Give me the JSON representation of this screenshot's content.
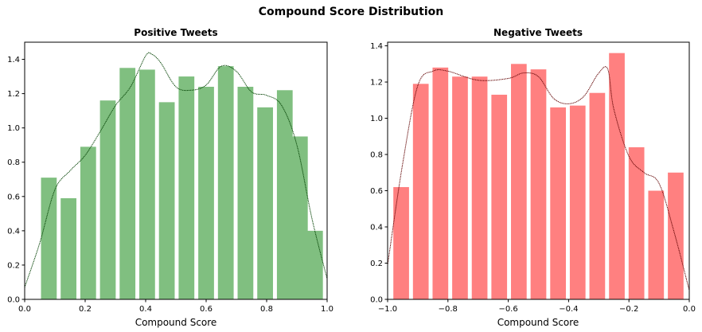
{
  "figure": {
    "suptitle": "Compound Score Distribution"
  },
  "chart_data": [
    {
      "type": "bar",
      "title": "Positive Tweets",
      "xlabel": "Compound Score",
      "ylabel": "",
      "xlim": [
        0.0,
        1.0
      ],
      "ylim": [
        0.0,
        1.5
      ],
      "xticks": [
        0.0,
        0.2,
        0.4,
        0.6,
        0.8,
        1.0
      ],
      "xtick_labels": [
        "0.0",
        "0.2",
        "0.4",
        "0.6",
        "0.8",
        "1.0"
      ],
      "yticks": [
        0.0,
        0.2,
        0.4,
        0.6,
        0.8,
        1.0,
        1.2,
        1.4
      ],
      "ytick_labels": [
        "0.0",
        "0.2",
        "0.4",
        "0.6",
        "0.8",
        "1.0",
        "1.2",
        "1.4"
      ],
      "grid": false,
      "bar_color": "#80bf80",
      "bars": [
        {
          "x": 0.08,
          "value": 0.71
        },
        {
          "x": 0.145,
          "value": 0.59
        },
        {
          "x": 0.21,
          "value": 0.89
        },
        {
          "x": 0.275,
          "value": 1.16
        },
        {
          "x": 0.34,
          "value": 1.35
        },
        {
          "x": 0.405,
          "value": 1.34
        },
        {
          "x": 0.47,
          "value": 1.15
        },
        {
          "x": 0.535,
          "value": 1.3
        },
        {
          "x": 0.6,
          "value": 1.24
        },
        {
          "x": 0.665,
          "value": 1.36
        },
        {
          "x": 0.73,
          "value": 1.24
        },
        {
          "x": 0.795,
          "value": 1.12
        },
        {
          "x": 0.86,
          "value": 1.22
        },
        {
          "x": 0.91,
          "value": 0.95
        },
        {
          "x": 0.96,
          "value": 0.4
        }
      ],
      "bar_width": 0.052,
      "kde": {
        "color": "#004000",
        "x": [
          0.0,
          0.05,
          0.1,
          0.15,
          0.2,
          0.25,
          0.3,
          0.35,
          0.4,
          0.42,
          0.45,
          0.5,
          0.55,
          0.6,
          0.65,
          0.7,
          0.75,
          0.8,
          0.85,
          0.9,
          0.95,
          1.0
        ],
        "y": [
          0.07,
          0.33,
          0.64,
          0.75,
          0.84,
          0.98,
          1.13,
          1.24,
          1.42,
          1.43,
          1.38,
          1.24,
          1.22,
          1.25,
          1.36,
          1.33,
          1.21,
          1.19,
          1.13,
          0.9,
          0.47,
          0.12
        ]
      }
    },
    {
      "type": "bar",
      "title": "Negative Tweets",
      "xlabel": "Compound Score",
      "ylabel": "",
      "xlim": [
        -1.0,
        0.0
      ],
      "ylim": [
        0.0,
        1.42
      ],
      "xticks": [
        -1.0,
        -0.8,
        -0.6,
        -0.4,
        -0.2,
        0.0
      ],
      "xtick_labels": [
        "−1.0",
        "−0.8",
        "−0.6",
        "−0.4",
        "−0.2",
        "0.0"
      ],
      "yticks": [
        0.0,
        0.2,
        0.4,
        0.6,
        0.8,
        1.0,
        1.2,
        1.4
      ],
      "ytick_labels": [
        "0.0",
        "0.2",
        "0.4",
        "0.6",
        "0.8",
        "1.0",
        "1.2",
        "1.4"
      ],
      "grid": false,
      "bar_color": "#ff8080",
      "bars": [
        {
          "x": -0.955,
          "value": 0.62
        },
        {
          "x": -0.89,
          "value": 1.19
        },
        {
          "x": -0.825,
          "value": 1.28
        },
        {
          "x": -0.76,
          "value": 1.23
        },
        {
          "x": -0.695,
          "value": 1.23
        },
        {
          "x": -0.63,
          "value": 1.13
        },
        {
          "x": -0.565,
          "value": 1.3
        },
        {
          "x": -0.5,
          "value": 1.27
        },
        {
          "x": -0.435,
          "value": 1.06
        },
        {
          "x": -0.37,
          "value": 1.07
        },
        {
          "x": -0.305,
          "value": 1.14
        },
        {
          "x": -0.24,
          "value": 1.36
        },
        {
          "x": -0.175,
          "value": 0.84
        },
        {
          "x": -0.11,
          "value": 0.6
        },
        {
          "x": -0.045,
          "value": 0.7
        }
      ],
      "bar_width": 0.052,
      "kde": {
        "color": "#600000",
        "x": [
          -1.0,
          -0.95,
          -0.9,
          -0.85,
          -0.8,
          -0.7,
          -0.6,
          -0.55,
          -0.5,
          -0.45,
          -0.4,
          -0.35,
          -0.3,
          -0.27,
          -0.25,
          -0.2,
          -0.15,
          -0.1,
          -0.05,
          0.0
        ],
        "y": [
          0.19,
          0.75,
          1.18,
          1.26,
          1.26,
          1.21,
          1.22,
          1.25,
          1.23,
          1.11,
          1.08,
          1.12,
          1.25,
          1.27,
          1.05,
          0.79,
          0.7,
          0.64,
          0.37,
          0.05
        ]
      }
    }
  ]
}
